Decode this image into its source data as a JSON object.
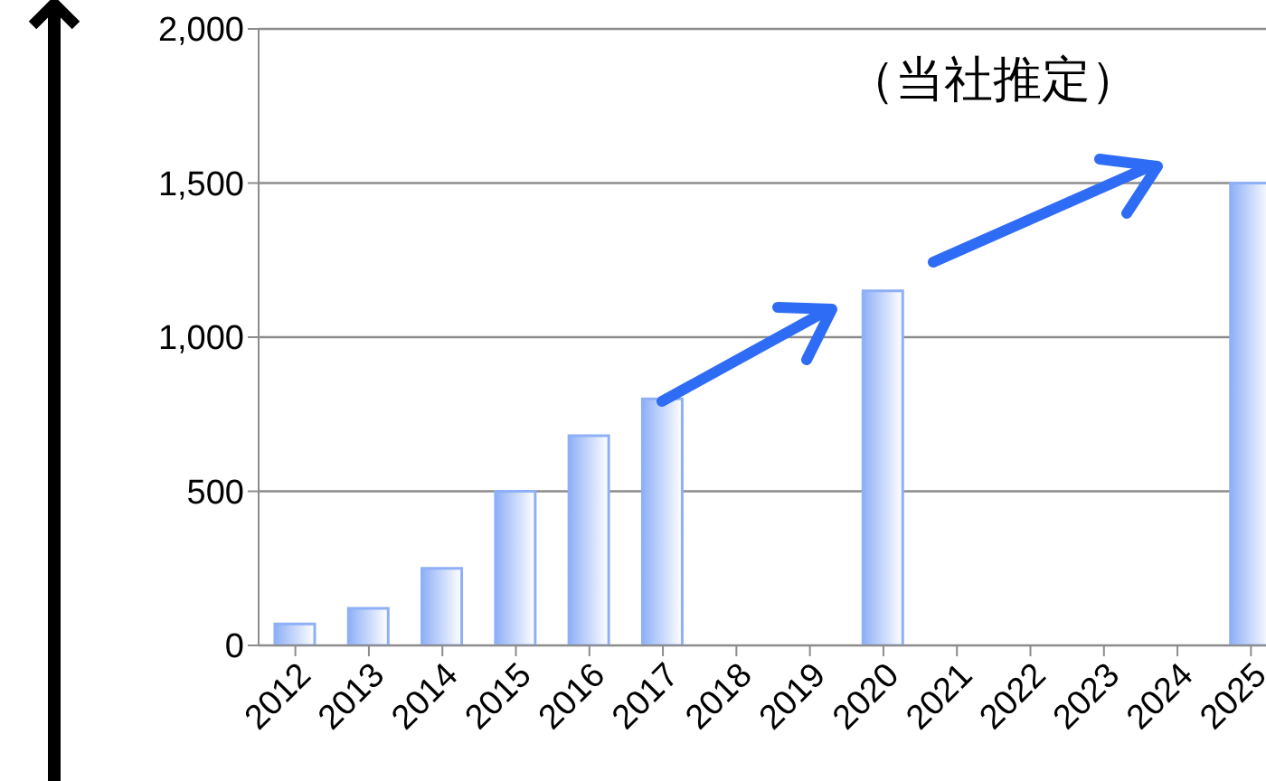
{
  "chart_data": {
    "type": "bar",
    "categories": [
      "2012",
      "2013",
      "2014",
      "2015",
      "2016",
      "2017",
      "2018",
      "2019",
      "2020",
      "2021",
      "2022",
      "2023",
      "2024",
      "2025"
    ],
    "values": [
      70,
      120,
      250,
      500,
      680,
      800,
      null,
      null,
      1150,
      null,
      null,
      null,
      null,
      1500
    ],
    "color": "#8fb0f7",
    "ylim": [
      0,
      2000
    ],
    "yticks": [
      {
        "value": 0,
        "label": "0"
      },
      {
        "value": 500,
        "label": "500"
      },
      {
        "value": 1000,
        "label": "1,000"
      },
      {
        "value": 1500,
        "label": "1,500"
      },
      {
        "value": 2000,
        "label": "2,000"
      }
    ],
    "grid": "y",
    "annotations": [
      "（当社推定）"
    ]
  }
}
